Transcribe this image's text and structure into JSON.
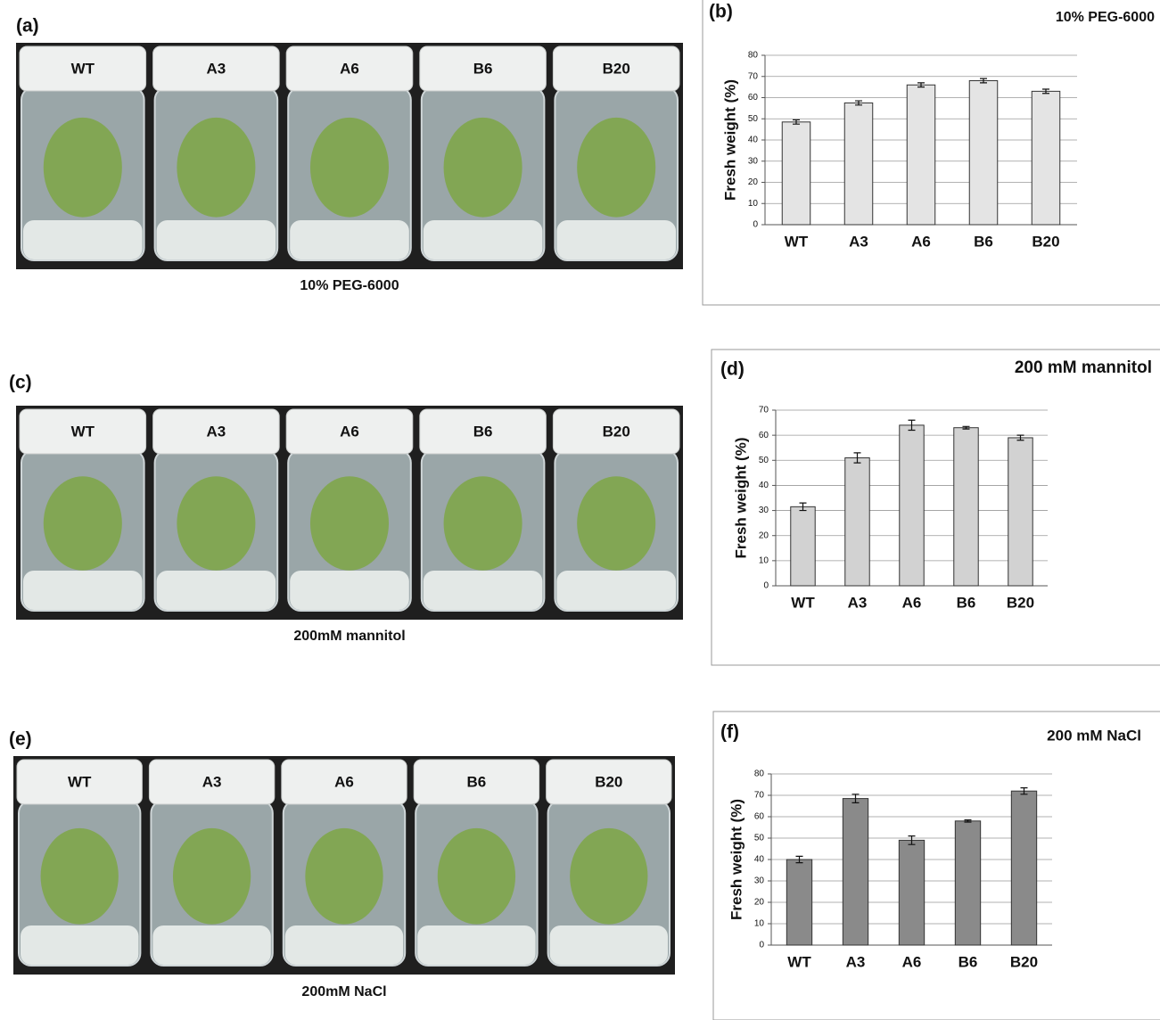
{
  "photos": [
    {
      "label": "(a)",
      "jars": [
        "WT",
        "A3",
        "A6",
        "B6",
        "B20"
      ],
      "caption": "10% PEG-6000"
    },
    {
      "label": "(c)",
      "jars": [
        "WT",
        "A3",
        "A6",
        "B6",
        "B20"
      ],
      "caption": "200mM mannitol"
    },
    {
      "label": "(e)",
      "jars": [
        "WT",
        "A3",
        "A6",
        "B6",
        "B20"
      ],
      "caption": "200mM NaCl"
    }
  ],
  "chart_data": [
    {
      "type": "bar",
      "label": "(b)",
      "title": "10% PEG-6000",
      "y_label": "Fresh weight (%)",
      "categories": [
        "WT",
        "A3",
        "A6",
        "B6",
        "B20"
      ],
      "values": [
        48.5,
        57.5,
        66,
        68,
        63
      ],
      "errors": [
        1,
        1,
        1,
        1,
        1
      ],
      "color": "#e4e4e4",
      "ylim": [
        0,
        80
      ],
      "yticks": [
        0,
        10,
        20,
        30,
        40,
        50,
        60,
        70,
        80
      ],
      "grid": true
    },
    {
      "type": "bar",
      "label": "(d)",
      "title": "200 mM mannitol",
      "y_label": "Fresh weight (%)",
      "categories": [
        "WT",
        "A3",
        "A6",
        "B6",
        "B20"
      ],
      "values": [
        31.5,
        51,
        64,
        63,
        59
      ],
      "errors": [
        1.5,
        2,
        2,
        0.5,
        1
      ],
      "color": "#d2d2d2",
      "ylim": [
        0,
        70
      ],
      "yticks": [
        0,
        10,
        20,
        30,
        40,
        50,
        60,
        70
      ],
      "grid": true
    },
    {
      "type": "bar",
      "label": "(f)",
      "title": "200 mM NaCl",
      "y_label": "Fresh weight (%)",
      "categories": [
        "WT",
        "A3",
        "A6",
        "B6",
        "B20"
      ],
      "values": [
        40,
        68.5,
        49,
        58,
        72
      ],
      "errors": [
        1.5,
        2,
        2,
        0.5,
        1.5
      ],
      "color": "#8a8a8a",
      "ylim": [
        0,
        80
      ],
      "yticks": [
        0,
        10,
        20,
        30,
        40,
        50,
        60,
        70,
        80
      ],
      "grid": true
    }
  ]
}
